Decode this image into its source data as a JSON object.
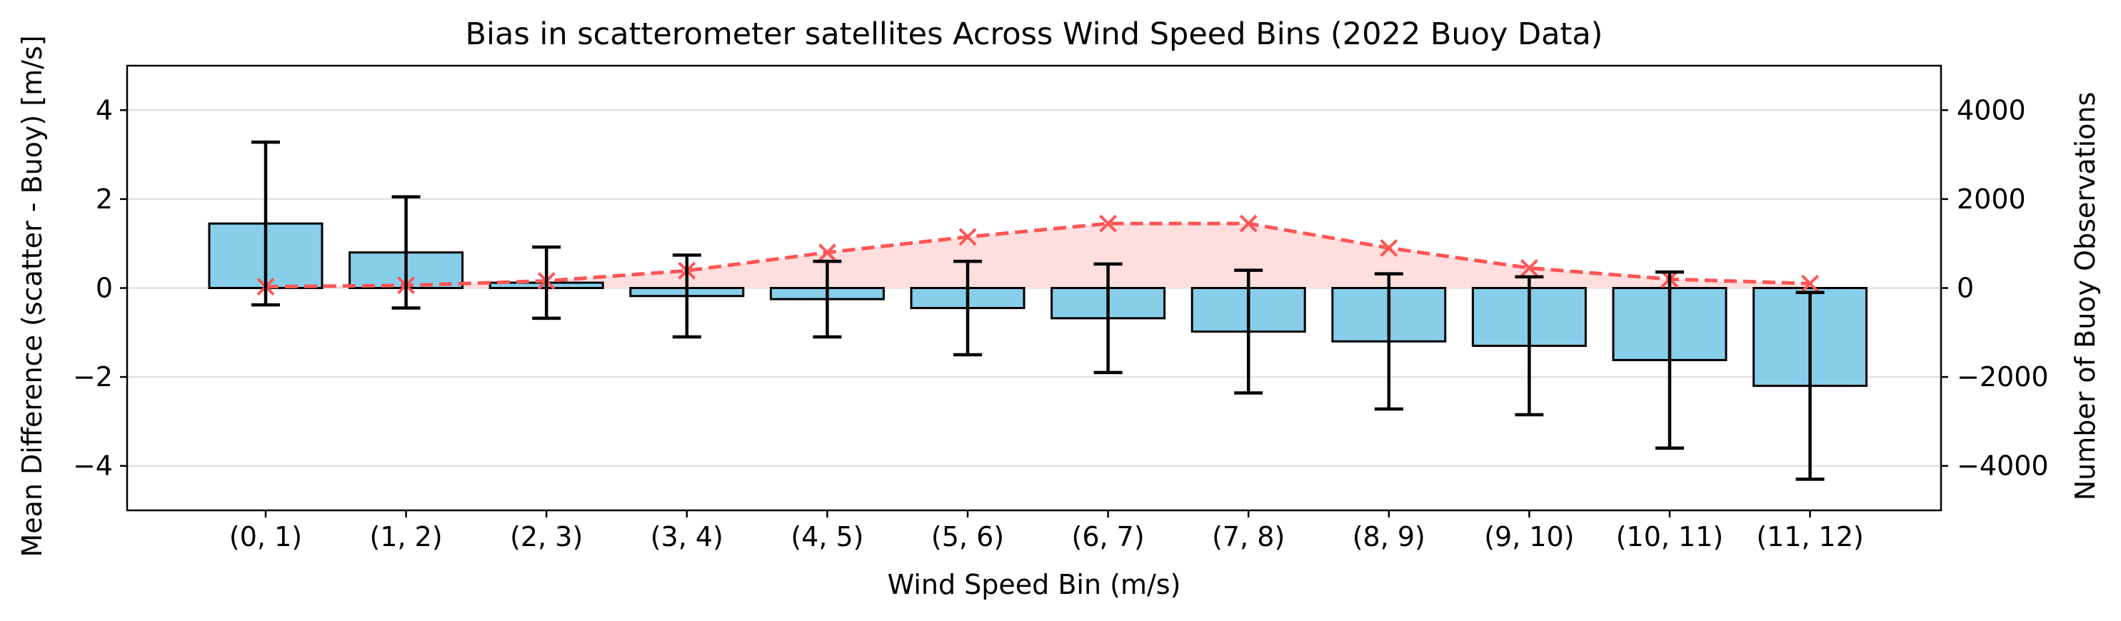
{
  "chart_data": {
    "type": "bar",
    "title": "Bias in scatterometer satellites Across Wind Speed Bins (2022 Buoy Data)",
    "xlabel": "Wind Speed Bin (m/s)",
    "ylabel": "Mean Difference (scatter - Buoy) [m/s]",
    "ylabel_right": "Number of Buoy Observations",
    "categories": [
      "(0, 1)",
      "(1, 2)",
      "(2, 3)",
      "(3, 4)",
      "(4, 5)",
      "(5, 6)",
      "(6, 7)",
      "(7, 8)",
      "(8, 9)",
      "(9, 10)",
      "(10, 11)",
      "(11, 12)"
    ],
    "bars": {
      "values": [
        1.45,
        0.8,
        0.12,
        -0.18,
        -0.25,
        -0.45,
        -0.68,
        -0.98,
        -1.2,
        -1.3,
        -1.62,
        -2.2
      ],
      "error": [
        1.83,
        1.25,
        0.8,
        0.92,
        0.85,
        1.05,
        1.22,
        1.38,
        1.52,
        1.55,
        1.98,
        2.1
      ],
      "color": "#87ceeb",
      "edge_color": "#000000"
    },
    "observations": {
      "values": [
        30,
        60,
        160,
        390,
        800,
        1150,
        1450,
        1450,
        900,
        450,
        200,
        100
      ],
      "color": "#ff5555",
      "fill_color": "#ffdede",
      "line_style": "dashed",
      "marker": "x"
    },
    "ylim": [
      -5,
      5
    ],
    "ylim_right": [
      -5000,
      5000
    ],
    "yticks": [
      -4,
      -2,
      0,
      2,
      4
    ],
    "yticks_right": [
      -4000,
      -2000,
      0,
      2000,
      4000
    ],
    "grid": "horizontal"
  }
}
